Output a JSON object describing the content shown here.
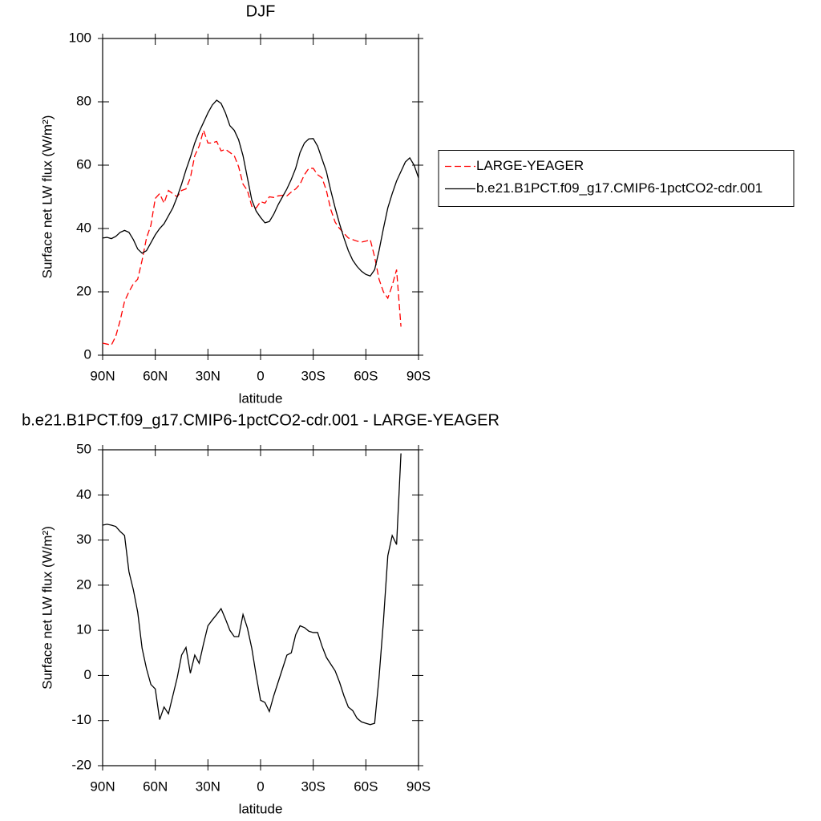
{
  "chart_data": [
    {
      "type": "line",
      "title": "DJF",
      "xlabel": "latitude",
      "ylabel": "Surface net LW flux (W/m²)",
      "x": [
        90,
        87.5,
        85,
        82.5,
        80,
        77.5,
        75,
        72.5,
        70,
        67.5,
        65,
        62.5,
        60,
        57.5,
        55,
        52.5,
        50,
        47.5,
        45,
        42.5,
        40,
        37.5,
        35,
        32.5,
        30,
        27.5,
        25,
        22.5,
        20,
        17.5,
        15,
        12.5,
        10,
        7.5,
        5,
        2.5,
        0,
        -2.5,
        -5,
        -7.5,
        -10,
        -12.5,
        -15,
        -17.5,
        -20,
        -22.5,
        -25,
        -27.5,
        -30,
        -32.5,
        -35,
        -37.5,
        -40,
        -42.5,
        -45,
        -47.5,
        -50,
        -52.5,
        -55,
        -57.5,
        -60,
        -62.5,
        -65,
        -67.5,
        -70,
        -72.5,
        -75,
        -77.5,
        -80,
        -82.5,
        -85,
        -87.5,
        -90
      ],
      "series": [
        {
          "name": "LARGE-YEAGER",
          "color": "#ff0000",
          "dashed": true,
          "values": [
            3.8,
            3.5,
            3.2,
            6,
            11,
            17,
            20,
            22.5,
            24,
            30,
            37,
            41,
            49.5,
            51,
            48,
            52,
            51,
            50,
            52,
            52.5,
            56,
            63,
            66,
            71,
            67,
            67,
            67.5,
            64.5,
            65,
            64,
            63,
            59.5,
            54,
            52,
            47,
            46.5,
            48.5,
            48,
            50,
            49.8,
            50.3,
            50.5,
            50.3,
            51.5,
            52.5,
            54,
            57,
            59,
            59,
            57,
            56,
            52,
            46,
            42,
            40,
            38.5,
            37,
            36.5,
            36,
            35.7,
            36,
            36.5,
            31,
            24,
            20,
            18,
            22,
            27,
            9,
            null,
            null,
            null,
            null
          ]
        },
        {
          "name": "b.e21.B1PCT.f09_g17.CMIP6-1pctCO2-cdr.001",
          "color": "#000000",
          "dashed": false,
          "values": [
            37,
            37.2,
            36.8,
            37.5,
            38.8,
            39.4,
            38.8,
            36.5,
            33.5,
            32.2,
            33,
            35.5,
            38,
            40,
            41.5,
            44,
            46.5,
            50,
            54,
            58.5,
            62.5,
            67,
            70.5,
            73.5,
            76.5,
            79,
            80.5,
            79.5,
            76.5,
            72.5,
            71,
            68,
            63,
            56,
            49,
            45.5,
            43.5,
            41.8,
            42.2,
            44.5,
            47.5,
            50,
            52.5,
            55.5,
            59,
            64,
            67,
            68.3,
            68.4,
            66,
            62,
            58,
            52,
            46.5,
            41.5,
            37,
            33,
            30,
            28,
            26.5,
            25.5,
            25,
            27,
            33,
            40,
            46.5,
            51,
            55,
            58,
            61,
            62.3,
            60,
            56
          ]
        }
      ],
      "xlim": [
        90,
        -90
      ],
      "xticks": [
        {
          "value": 90,
          "label": "90N"
        },
        {
          "value": 60,
          "label": "60N"
        },
        {
          "value": 30,
          "label": "30N"
        },
        0,
        {
          "value": -30,
          "label": "30S"
        },
        {
          "value": -60,
          "label": "60S"
        },
        {
          "value": -90,
          "label": "90S"
        }
      ],
      "ylim": [
        0,
        100
      ],
      "yticks": [
        0,
        20,
        40,
        60,
        80,
        100
      ],
      "legend": "right"
    },
    {
      "type": "line",
      "title": "b.e21.B1PCT.f09_g17.CMIP6-1pctCO2-cdr.001 - LARGE-YEAGER",
      "xlabel": "latitude",
      "ylabel": "Surface net LW flux (W/m²)",
      "x": [
        90,
        87.5,
        85,
        82.5,
        80,
        77.5,
        75,
        72.5,
        70,
        67.5,
        65,
        62.5,
        60,
        57.5,
        55,
        52.5,
        50,
        47.5,
        45,
        42.5,
        40,
        37.5,
        35,
        32.5,
        30,
        27.5,
        25,
        22.5,
        20,
        17.5,
        15,
        12.5,
        10,
        7.5,
        5,
        2.5,
        0,
        -2.5,
        -5,
        -7.5,
        -10,
        -12.5,
        -15,
        -17.5,
        -20,
        -22.5,
        -25,
        -27.5,
        -30,
        -32.5,
        -35,
        -37.5,
        -40,
        -42.5,
        -45,
        -47.5,
        -50,
        -52.5,
        -55,
        -57.5,
        -60,
        -62.5,
        -65,
        -67.5,
        -70,
        -72.5,
        -75,
        -77.5,
        -80,
        -82.5,
        -85,
        -87.5,
        -90
      ],
      "series": [
        {
          "color": "#000000",
          "dashed": false,
          "values": [
            33.3,
            33.5,
            33.3,
            33,
            31.9,
            31,
            23,
            19,
            14,
            6,
            1.5,
            -2,
            -3,
            -9.8,
            -7,
            -8.5,
            -4.5,
            -0.5,
            4.5,
            6.2,
            0.5,
            4.5,
            2.7,
            7,
            11,
            12.3,
            13.5,
            14.8,
            12.5,
            10,
            8.6,
            8.6,
            13.5,
            10.5,
            6,
            0,
            -5.5,
            -6,
            -8,
            -4.5,
            -1.5,
            1.5,
            4.5,
            5,
            9,
            11,
            10.6,
            9.8,
            9.5,
            9.5,
            6.5,
            4,
            2.5,
            1,
            -1.5,
            -4.5,
            -7,
            -7.8,
            -9.5,
            -10.3,
            -10.6,
            -10.9,
            -10.6,
            -0.5,
            12,
            26.5,
            31,
            29,
            49.2,
            null,
            null,
            null,
            null
          ]
        }
      ],
      "xlim": [
        90,
        -90
      ],
      "xticks": [
        {
          "value": 90,
          "label": "90N"
        },
        {
          "value": 60,
          "label": "60N"
        },
        {
          "value": 30,
          "label": "30N"
        },
        0,
        {
          "value": -30,
          "label": "30S"
        },
        {
          "value": -60,
          "label": "60S"
        },
        {
          "value": -90,
          "label": "90S"
        }
      ],
      "ylim": [
        -20,
        50
      ],
      "yticks": [
        -20,
        -10,
        0,
        10,
        20,
        30,
        40,
        50
      ]
    }
  ]
}
